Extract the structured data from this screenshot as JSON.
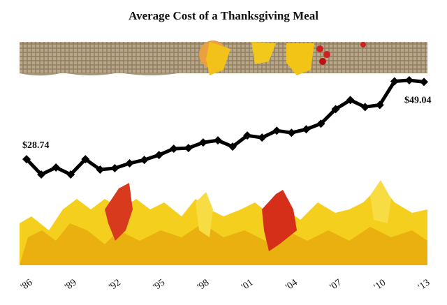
{
  "chart_data": {
    "type": "line",
    "title": "Average Cost of a Thanksgiving Meal",
    "categories": [
      "'86",
      null,
      null,
      "'89",
      null,
      null,
      "'92",
      null,
      null,
      "'95",
      null,
      null,
      "'98",
      null,
      null,
      "'01",
      null,
      null,
      "'04",
      null,
      null,
      "'07",
      null,
      null,
      "'10",
      null,
      null,
      "'13"
    ],
    "series": [
      {
        "color": "#000000",
        "values": [
          28.74,
          24.72,
          26.55,
          24.72,
          28.74,
          26.0,
          26.37,
          27.65,
          28.56,
          29.84,
          31.49,
          31.67,
          33.13,
          33.68,
          32.04,
          34.96,
          34.41,
          36.24,
          35.69,
          36.6,
          38.07,
          41.9,
          44.28,
          42.45,
          43.0,
          49.2,
          49.48,
          49.04
        ],
        "value_labels": [
          "$28.74",
          null,
          null,
          null,
          null,
          null,
          null,
          null,
          null,
          null,
          null,
          null,
          null,
          null,
          null,
          null,
          null,
          null,
          null,
          null,
          null,
          null,
          null,
          null,
          null,
          null,
          null,
          "$49.04"
        ]
      }
    ]
  }
}
